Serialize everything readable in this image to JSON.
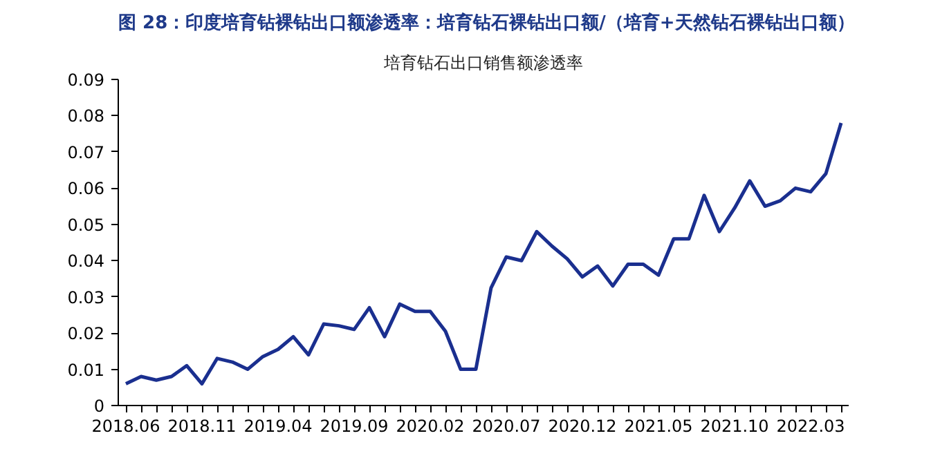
{
  "chart_data": {
    "type": "line",
    "title": "图 28：印度培育钻裸钻出口额渗透率：培育钻石裸钻出口额/（培育+天然钻石裸钻出口额）",
    "subtitle": "培育钻石出口销售额渗透率",
    "categories": [
      "2018.06",
      null,
      null,
      null,
      null,
      "2018.11",
      null,
      null,
      null,
      null,
      "2019.04",
      null,
      null,
      null,
      null,
      "2019.09",
      null,
      null,
      null,
      null,
      "2020.02",
      null,
      null,
      null,
      null,
      "2020.07",
      null,
      null,
      null,
      null,
      "2020.12",
      null,
      null,
      null,
      null,
      "2021.05",
      null,
      null,
      null,
      null,
      "2021.10",
      null,
      null,
      null,
      null,
      "2022.03",
      null,
      null
    ],
    "series": [
      {
        "color": "#1a2f8f",
        "values": [
          0.006,
          0.008,
          0.007,
          0.008,
          0.011,
          0.006,
          0.013,
          0.012,
          0.01,
          0.0135,
          0.0155,
          0.019,
          0.014,
          0.0225,
          0.022,
          0.021,
          0.027,
          0.019,
          0.028,
          0.026,
          0.026,
          0.0205,
          0.01,
          0.01,
          0.0325,
          0.041,
          0.04,
          0.048,
          0.044,
          0.0405,
          0.0355,
          0.0385,
          0.033,
          0.039,
          0.039,
          0.036,
          0.046,
          0.046,
          0.058,
          0.048,
          0.0545,
          0.062,
          0.055,
          0.0565,
          0.06,
          0.059,
          0.064,
          0.078
        ]
      }
    ],
    "ylim": [
      0,
      0.09
    ],
    "yticks": [
      0,
      0.01,
      0.02,
      0.03,
      0.04,
      0.05,
      0.06,
      0.07,
      0.08,
      0.09
    ],
    "grid": false,
    "line_style": "solid",
    "marker": "none"
  }
}
